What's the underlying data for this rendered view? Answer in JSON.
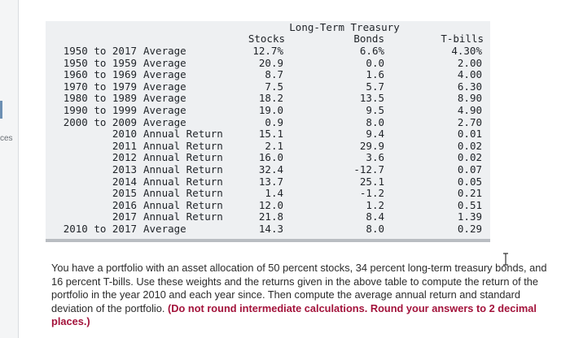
{
  "sidebar": {
    "edge_label": "ces"
  },
  "table": {
    "header": {
      "group_top": "Long-Term Treasury",
      "stocks": "Stocks",
      "bonds": "Bonds",
      "tbills": "T-bills"
    },
    "rows": [
      {
        "period": "1950 to 2017",
        "kind": "Average",
        "stocks": "12.7%",
        "bonds": "6.6%",
        "tbills": "4.30%"
      },
      {
        "period": "1950 to 1959",
        "kind": "Average",
        "stocks": "20.9",
        "bonds": "0.0",
        "tbills": "2.00"
      },
      {
        "period": "1960 to 1969",
        "kind": "Average",
        "stocks": "8.7",
        "bonds": "1.6",
        "tbills": "4.00"
      },
      {
        "period": "1970 to 1979",
        "kind": "Average",
        "stocks": "7.5",
        "bonds": "5.7",
        "tbills": "6.30"
      },
      {
        "period": "1980 to 1989",
        "kind": "Average",
        "stocks": "18.2",
        "bonds": "13.5",
        "tbills": "8.90"
      },
      {
        "period": "1990 to 1999",
        "kind": "Average",
        "stocks": "19.0",
        "bonds": "9.5",
        "tbills": "4.90"
      },
      {
        "period": "2000 to 2009",
        "kind": "Average",
        "stocks": "0.9",
        "bonds": "8.0",
        "tbills": "2.70"
      },
      {
        "period": "2010",
        "kind": "Annual Return",
        "stocks": "15.1",
        "bonds": "9.4",
        "tbills": "0.01"
      },
      {
        "period": "2011",
        "kind": "Annual Return",
        "stocks": "2.1",
        "bonds": "29.9",
        "tbills": "0.02"
      },
      {
        "period": "2012",
        "kind": "Annual Return",
        "stocks": "16.0",
        "bonds": "3.6",
        "tbills": "0.02"
      },
      {
        "period": "2013",
        "kind": "Annual Return",
        "stocks": "32.4",
        "bonds": "-12.7",
        "tbills": "0.07"
      },
      {
        "period": "2014",
        "kind": "Annual Return",
        "stocks": "13.7",
        "bonds": "25.1",
        "tbills": "0.05"
      },
      {
        "period": "2015",
        "kind": "Annual Return",
        "stocks": "1.4",
        "bonds": "-1.2",
        "tbills": "0.21"
      },
      {
        "period": "2016",
        "kind": "Annual Return",
        "stocks": "12.0",
        "bonds": "1.2",
        "tbills": "0.51"
      },
      {
        "period": "2017",
        "kind": "Annual Return",
        "stocks": "21.8",
        "bonds": "8.4",
        "tbills": "1.39"
      },
      {
        "period": "2010 to 2017",
        "kind": "Average",
        "stocks": "14.3",
        "bonds": "8.0",
        "tbills": "0.29"
      }
    ]
  },
  "question": {
    "text": "You have a portfolio with an asset allocation of 50 percent stocks, 34 percent long-term treasury bonds, and 16 percent T-bills. Use these weights and the returns given in the above table to compute the return of the portfolio in the year 2010 and each year since. Then compute the average annual return and standard deviation of the portfolio. ",
    "instruction": "(Do not round intermediate calculations. Round your answers to 2 decimal places.)"
  },
  "icons": {
    "cursor": "text-cursor-icon"
  },
  "colors": {
    "instruction": "#a3133b",
    "table_bg": "#eef0f2"
  }
}
